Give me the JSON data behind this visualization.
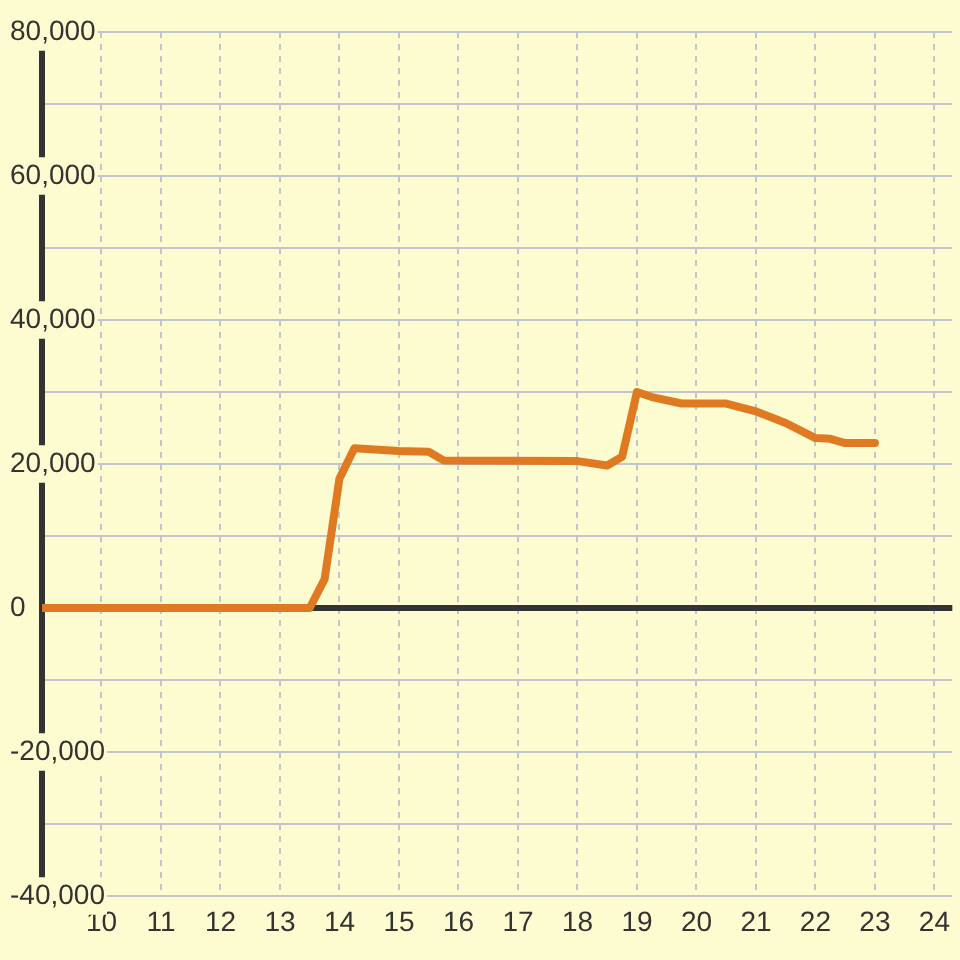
{
  "chart_data": {
    "type": "line",
    "x": [
      9,
      13.5,
      13.75,
      14,
      14.25,
      15,
      15.5,
      15.75,
      18,
      18.5,
      18.75,
      19,
      19.25,
      19.75,
      20.5,
      21,
      21.5,
      22,
      22.25,
      22.5,
      23
    ],
    "series": [
      {
        "color": "#e07a22",
        "values": [
          0,
          0,
          4000,
          18000,
          22200,
          21800,
          21700,
          20500,
          20400,
          19800,
          21000,
          30000,
          29300,
          28400,
          28400,
          27300,
          25700,
          23600,
          23500,
          22900,
          22900
        ]
      }
    ],
    "xlim": [
      9,
      24.3
    ],
    "xticks": [
      10,
      11,
      12,
      13,
      14,
      15,
      16,
      17,
      18,
      19,
      20,
      21,
      22,
      23,
      24
    ],
    "ylim": [
      -40000,
      80000
    ],
    "yticks": [
      {
        "value": -40000,
        "label": "-40,000"
      },
      {
        "value": -30000,
        "label": null
      },
      {
        "value": -20000,
        "label": "-20,000"
      },
      {
        "value": -10000,
        "label": null
      },
      {
        "value": 0,
        "label": "0"
      },
      {
        "value": 10000,
        "label": null
      },
      {
        "value": 20000,
        "label": "20,000"
      },
      {
        "value": 30000,
        "label": null
      },
      {
        "value": 40000,
        "label": "40,000"
      },
      {
        "value": 50000,
        "label": null
      },
      {
        "value": 60000,
        "label": "60,000"
      },
      {
        "value": 70000,
        "label": null
      },
      {
        "value": 80000,
        "label": "80,000"
      }
    ],
    "grid": true,
    "ref_lines": [
      {
        "axis": "y",
        "value": 0,
        "color": "#333333"
      }
    ],
    "marker": "none",
    "line_style": "solid"
  }
}
